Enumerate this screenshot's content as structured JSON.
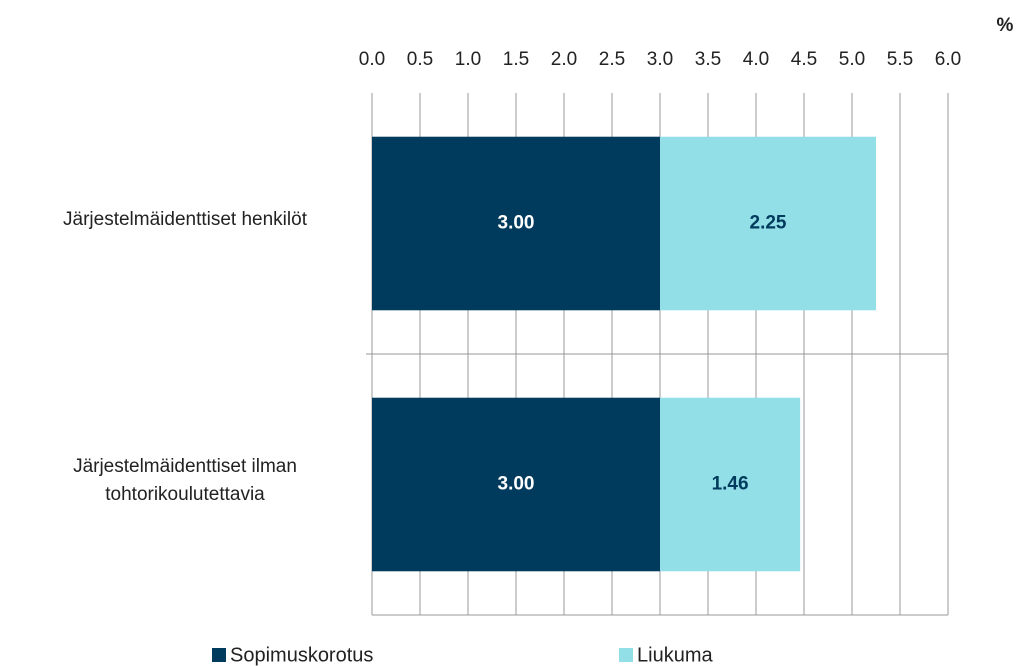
{
  "chart_data": {
    "type": "stacked_barh",
    "x_label": "%",
    "categories": [
      "Järjestelmäidenttiset henkilöt",
      "Järjestelmäidenttiset ilman tohtorikoulutettavia"
    ],
    "series": [
      {
        "name": "Sopimuskorotus",
        "color": "#003a5c",
        "label_color": "#ffffff",
        "values": [
          3,
          3
        ],
        "value_labels": [
          "3.00",
          "3.00"
        ]
      },
      {
        "name": "Liukuma",
        "color": "#92dfe8",
        "label_color": "#003a5c",
        "values": [
          2.25,
          1.46
        ],
        "value_labels": [
          "2.25",
          "1.46"
        ]
      }
    ],
    "xlim": [
      0,
      6
    ],
    "xticks": [
      {
        "value": 0,
        "label": "0.0"
      },
      0.5,
      {
        "value": 1,
        "label": "1.0"
      },
      1.5,
      {
        "value": 2,
        "label": "2.0"
      },
      2.5,
      {
        "value": 3,
        "label": "3.0"
      },
      3.5,
      {
        "value": 4,
        "label": "4.0"
      },
      4.5,
      {
        "value": 5,
        "label": "5.0"
      },
      5.5,
      {
        "value": 6,
        "label": "6.0"
      }
    ],
    "grid": true
  }
}
